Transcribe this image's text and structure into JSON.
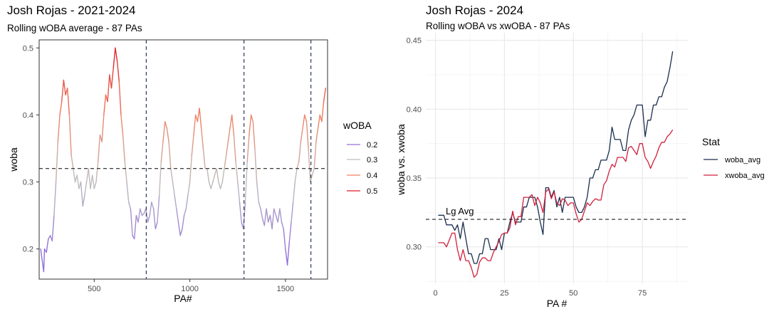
{
  "chart_data": [
    {
      "type": "line",
      "title": "Josh Rojas - 2021-2024",
      "subtitle": "Rolling wOBA average - 87 PAs",
      "xlabel": "PA#",
      "ylabel": "woba",
      "xlim": [
        212,
        1720
      ],
      "ylim": [
        0.155,
        0.512
      ],
      "xticks": [
        500,
        1000,
        1500
      ],
      "xtick_labels": [
        "500",
        "1000",
        "1500"
      ],
      "yticks": [
        0.2,
        0.3,
        0.4,
        0.5
      ],
      "ytick_labels": [
        "0.2",
        "0.3",
        "0.4",
        "0.5"
      ],
      "reference_hline": 0.32,
      "reference_vlines": [
        772,
        1283,
        1633
      ],
      "color_scale": {
        "title": "wOBA",
        "stops": [
          {
            "label": "0.2",
            "value": 0.2,
            "color": "#9370db"
          },
          {
            "label": "0.3",
            "value": 0.3,
            "color": "#bebebe"
          },
          {
            "label": "0.4",
            "value": 0.4,
            "color": "#f08060"
          },
          {
            "label": "0.5",
            "value": 0.5,
            "color": "#dc1c2c"
          }
        ]
      },
      "series": [
        {
          "name": "woba",
          "x": [
            220,
            236,
            240,
            250,
            260,
            270,
            280,
            290,
            300,
            310,
            320,
            330,
            340,
            350,
            360,
            370,
            380,
            390,
            400,
            410,
            420,
            430,
            440,
            450,
            460,
            470,
            480,
            490,
            500,
            510,
            520,
            530,
            540,
            550,
            560,
            570,
            580,
            590,
            600,
            610,
            620,
            630,
            640,
            650,
            660,
            670,
            680,
            690,
            700,
            710,
            720,
            730,
            740,
            750,
            760,
            770,
            780,
            790,
            800,
            810,
            820,
            830,
            840,
            850,
            860,
            870,
            880,
            890,
            900,
            910,
            920,
            930,
            940,
            950,
            960,
            970,
            980,
            990,
            1000,
            1010,
            1020,
            1030,
            1040,
            1050,
            1060,
            1070,
            1080,
            1090,
            1100,
            1110,
            1120,
            1130,
            1140,
            1150,
            1160,
            1170,
            1180,
            1190,
            1200,
            1210,
            1220,
            1230,
            1240,
            1250,
            1260,
            1270,
            1280,
            1290,
            1300,
            1310,
            1320,
            1330,
            1340,
            1350,
            1360,
            1370,
            1380,
            1390,
            1400,
            1410,
            1420,
            1430,
            1440,
            1450,
            1460,
            1470,
            1480,
            1490,
            1500,
            1510,
            1520,
            1530,
            1540,
            1550,
            1560,
            1570,
            1580,
            1590,
            1600,
            1610,
            1620,
            1630,
            1640,
            1650,
            1660,
            1670,
            1680,
            1690,
            1700,
            1710
          ],
          "y": [
            0.2,
            0.166,
            0.2,
            0.195,
            0.215,
            0.22,
            0.212,
            0.25,
            0.3,
            0.36,
            0.4,
            0.42,
            0.452,
            0.43,
            0.44,
            0.4,
            0.34,
            0.32,
            0.3,
            0.31,
            0.29,
            0.3,
            0.264,
            0.28,
            0.3,
            0.32,
            0.29,
            0.31,
            0.29,
            0.3,
            0.33,
            0.37,
            0.36,
            0.4,
            0.43,
            0.42,
            0.46,
            0.44,
            0.47,
            0.5,
            0.48,
            0.45,
            0.4,
            0.37,
            0.33,
            0.3,
            0.27,
            0.26,
            0.22,
            0.215,
            0.25,
            0.24,
            0.26,
            0.25,
            0.253,
            0.26,
            0.24,
            0.25,
            0.27,
            0.26,
            0.23,
            0.24,
            0.28,
            0.33,
            0.36,
            0.39,
            0.38,
            0.36,
            0.32,
            0.3,
            0.28,
            0.26,
            0.24,
            0.22,
            0.23,
            0.25,
            0.26,
            0.28,
            0.3,
            0.34,
            0.37,
            0.4,
            0.39,
            0.41,
            0.38,
            0.35,
            0.32,
            0.32,
            0.3,
            0.29,
            0.3,
            0.31,
            0.32,
            0.3,
            0.29,
            0.3,
            0.32,
            0.34,
            0.36,
            0.38,
            0.4,
            0.37,
            0.33,
            0.3,
            0.27,
            0.24,
            0.23,
            0.27,
            0.33,
            0.37,
            0.4,
            0.39,
            0.35,
            0.3,
            0.27,
            0.26,
            0.245,
            0.235,
            0.26,
            0.24,
            0.25,
            0.23,
            0.26,
            0.25,
            0.24,
            0.26,
            0.24,
            0.23,
            0.2,
            0.176,
            0.21,
            0.24,
            0.27,
            0.3,
            0.32,
            0.33,
            0.36,
            0.38,
            0.4,
            0.39,
            0.35,
            0.3,
            0.31,
            0.32,
            0.36,
            0.38,
            0.4,
            0.39,
            0.42,
            0.44
          ]
        }
      ]
    },
    {
      "type": "line",
      "title": "Josh Rojas - 2024",
      "subtitle": "Rolling wOBA vs xwOBA - 87 PAs",
      "xlabel": "PA #",
      "ylabel": "woba vs. xwoba",
      "xlim": [
        -3.5,
        91.5
      ],
      "ylim": [
        0.2735,
        0.4555
      ],
      "xticks": [
        0,
        25,
        50,
        75
      ],
      "xtick_labels": [
        "0",
        "25",
        "50",
        "75"
      ],
      "yticks": [
        0.3,
        0.35,
        0.4,
        0.45
      ],
      "ytick_labels": [
        "0.30",
        "0.35",
        "0.40",
        "0.45"
      ],
      "reference_hline": 0.32,
      "reference_label": "Lg Avg",
      "legend": {
        "title": "Stat",
        "position": "right"
      },
      "x": [
        1,
        2,
        3,
        4,
        5,
        6,
        7,
        8,
        9,
        10,
        11,
        12,
        13,
        14,
        15,
        16,
        17,
        18,
        19,
        20,
        21,
        22,
        23,
        24,
        25,
        26,
        27,
        28,
        29,
        30,
        31,
        32,
        33,
        34,
        35,
        36,
        37,
        38,
        39,
        40,
        41,
        42,
        43,
        44,
        45,
        46,
        47,
        48,
        49,
        50,
        51,
        52,
        53,
        54,
        55,
        56,
        57,
        58,
        59,
        60,
        61,
        62,
        63,
        64,
        65,
        66,
        67,
        68,
        69,
        70,
        71,
        72,
        73,
        74,
        75,
        76,
        77,
        78,
        79,
        80,
        81,
        82,
        83,
        84,
        85,
        86
      ],
      "series": [
        {
          "name": "woba_avg",
          "color": "#1a2e4e",
          "values": [
            0.323,
            0.323,
            0.323,
            0.316,
            0.316,
            0.316,
            0.312,
            0.316,
            0.306,
            0.318,
            0.306,
            0.295,
            0.295,
            0.288,
            0.288,
            0.295,
            0.295,
            0.306,
            0.306,
            0.298,
            0.298,
            0.298,
            0.306,
            0.298,
            0.31,
            0.31,
            0.318,
            0.325,
            0.318,
            0.318,
            0.318,
            0.329,
            0.329,
            0.336,
            0.336,
            0.336,
            0.329,
            0.318,
            0.309,
            0.343,
            0.343,
            0.336,
            0.341,
            0.329,
            0.336,
            0.325,
            0.336,
            0.336,
            0.336,
            0.336,
            0.329,
            0.325,
            0.325,
            0.329,
            0.336,
            0.35,
            0.35,
            0.356,
            0.356,
            0.363,
            0.363,
            0.363,
            0.37,
            0.387,
            0.378,
            0.378,
            0.378,
            0.37,
            0.37,
            0.385,
            0.392,
            0.396,
            0.403,
            0.403,
            0.403,
            0.38,
            0.392,
            0.392,
            0.403,
            0.403,
            0.409,
            0.409,
            0.416,
            0.42,
            0.43,
            0.442
          ]
        },
        {
          "name": "xwoba_avg",
          "color": "#d0203c",
          "values": [
            0.303,
            0.303,
            0.303,
            0.3,
            0.305,
            0.31,
            0.31,
            0.298,
            0.29,
            0.298,
            0.29,
            0.29,
            0.285,
            0.278,
            0.28,
            0.289,
            0.292,
            0.292,
            0.29,
            0.29,
            0.296,
            0.3,
            0.304,
            0.309,
            0.31,
            0.31,
            0.314,
            0.326,
            0.316,
            0.322,
            0.322,
            0.336,
            0.336,
            0.336,
            0.338,
            0.33,
            0.336,
            0.332,
            0.325,
            0.34,
            0.342,
            0.335,
            0.34,
            0.332,
            0.33,
            0.335,
            0.334,
            0.33,
            0.332,
            0.332,
            0.324,
            0.318,
            0.32,
            0.326,
            0.332,
            0.33,
            0.333,
            0.335,
            0.334,
            0.334,
            0.345,
            0.348,
            0.355,
            0.36,
            0.358,
            0.365,
            0.365,
            0.365,
            0.362,
            0.372,
            0.373,
            0.37,
            0.367,
            0.375,
            0.375,
            0.365,
            0.362,
            0.357,
            0.362,
            0.366,
            0.372,
            0.376,
            0.376,
            0.38,
            0.382,
            0.385
          ]
        }
      ]
    }
  ]
}
